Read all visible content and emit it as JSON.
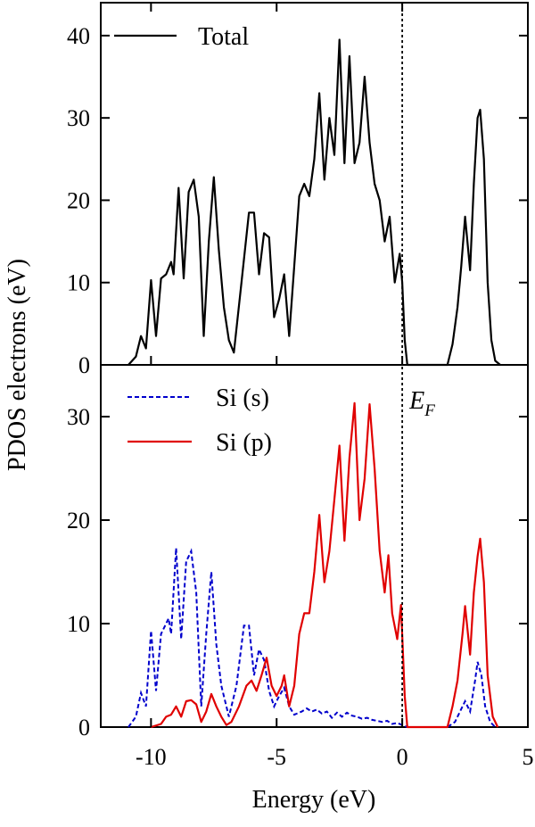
{
  "chart_data": {
    "type": "line",
    "xlabel": "Energy (eV)",
    "ylabel": "PDOS electrons (eV)",
    "xlim": [
      -12,
      5
    ],
    "x_ticks": [
      "-10",
      "-5",
      "0",
      "5"
    ],
    "x_tick_values": [
      -10,
      -5,
      0,
      5
    ],
    "fermi_level": {
      "x": 0,
      "label_main": "E",
      "label_sub": "F",
      "style": "dotted"
    },
    "panels": [
      {
        "id": "top",
        "ylim": [
          0,
          44
        ],
        "y_ticks": [
          "0",
          "10",
          "20",
          "30",
          "40"
        ],
        "y_tick_values": [
          0,
          10,
          20,
          30,
          40
        ],
        "legend_position": "top-left",
        "series": [
          {
            "name": "Total",
            "color": "#000000",
            "dash": "solid",
            "points": [
              [
                -10.9,
                0
              ],
              [
                -10.6,
                1
              ],
              [
                -10.4,
                3.5
              ],
              [
                -10.2,
                2
              ],
              [
                -10.0,
                10.3
              ],
              [
                -9.8,
                3.5
              ],
              [
                -9.6,
                10.5
              ],
              [
                -9.4,
                11
              ],
              [
                -9.2,
                12.5
              ],
              [
                -9.1,
                11
              ],
              [
                -8.9,
                21.5
              ],
              [
                -8.7,
                10.5
              ],
              [
                -8.5,
                21
              ],
              [
                -8.3,
                22.5
              ],
              [
                -8.1,
                18
              ],
              [
                -7.9,
                3.5
              ],
              [
                -7.7,
                15
              ],
              [
                -7.5,
                22.8
              ],
              [
                -7.3,
                14
              ],
              [
                -7.1,
                7
              ],
              [
                -6.9,
                3
              ],
              [
                -6.7,
                1.5
              ],
              [
                -6.4,
                10
              ],
              [
                -6.1,
                18.5
              ],
              [
                -5.9,
                18.5
              ],
              [
                -5.7,
                11
              ],
              [
                -5.5,
                16
              ],
              [
                -5.3,
                15.5
              ],
              [
                -5.1,
                5.8
              ],
              [
                -4.9,
                8
              ],
              [
                -4.7,
                11
              ],
              [
                -4.5,
                3.5
              ],
              [
                -4.3,
                12
              ],
              [
                -4.1,
                20.5
              ],
              [
                -3.9,
                22
              ],
              [
                -3.7,
                20.5
              ],
              [
                -3.5,
                25
              ],
              [
                -3.3,
                33
              ],
              [
                -3.1,
                22.5
              ],
              [
                -2.9,
                30
              ],
              [
                -2.7,
                25.5
              ],
              [
                -2.5,
                39.5
              ],
              [
                -2.3,
                24.5
              ],
              [
                -2.1,
                37.5
              ],
              [
                -1.9,
                24.5
              ],
              [
                -1.7,
                27
              ],
              [
                -1.5,
                35
              ],
              [
                -1.3,
                27
              ],
              [
                -1.1,
                22
              ],
              [
                -0.9,
                20
              ],
              [
                -0.7,
                15
              ],
              [
                -0.5,
                18
              ],
              [
                -0.3,
                10
              ],
              [
                -0.1,
                13.5
              ],
              [
                0.0,
                10
              ],
              [
                0.1,
                3
              ],
              [
                0.2,
                0
              ],
              [
                1.8,
                0
              ],
              [
                2.0,
                2.5
              ],
              [
                2.2,
                7
              ],
              [
                2.35,
                12
              ],
              [
                2.5,
                18
              ],
              [
                2.7,
                11.5
              ],
              [
                2.85,
                22
              ],
              [
                3.0,
                30
              ],
              [
                3.1,
                31
              ],
              [
                3.25,
                25
              ],
              [
                3.4,
                10
              ],
              [
                3.55,
                3
              ],
              [
                3.7,
                0.5
              ],
              [
                3.9,
                0
              ]
            ]
          }
        ]
      },
      {
        "id": "bottom",
        "ylim": [
          0,
          35
        ],
        "y_ticks": [
          "0",
          "10",
          "20",
          "30"
        ],
        "y_tick_values": [
          0,
          10,
          20,
          30
        ],
        "legend_position": "top-left",
        "series": [
          {
            "name": "Si (s)",
            "color": "#0000cc",
            "dash": "dashed",
            "points": [
              [
                -10.9,
                0
              ],
              [
                -10.6,
                1
              ],
              [
                -10.4,
                3.3
              ],
              [
                -10.2,
                2
              ],
              [
                -10.0,
                9.3
              ],
              [
                -9.8,
                3.5
              ],
              [
                -9.6,
                9
              ],
              [
                -9.4,
                10
              ],
              [
                -9.3,
                10.5
              ],
              [
                -9.2,
                9
              ],
              [
                -9.0,
                17.3
              ],
              [
                -8.8,
                8.5
              ],
              [
                -8.6,
                16
              ],
              [
                -8.4,
                17
              ],
              [
                -8.2,
                13
              ],
              [
                -8.0,
                2
              ],
              [
                -7.8,
                9
              ],
              [
                -7.6,
                15
              ],
              [
                -7.4,
                8
              ],
              [
                -7.2,
                4
              ],
              [
                -7.0,
                2
              ],
              [
                -6.9,
                1
              ],
              [
                -6.6,
                4
              ],
              [
                -6.3,
                9.8
              ],
              [
                -6.1,
                9.8
              ],
              [
                -5.9,
                5
              ],
              [
                -5.7,
                7.5
              ],
              [
                -5.5,
                6.5
              ],
              [
                -5.3,
                3.5
              ],
              [
                -5.1,
                2
              ],
              [
                -4.9,
                3
              ],
              [
                -4.7,
                3.8
              ],
              [
                -4.5,
                2
              ],
              [
                -4.3,
                1.2
              ],
              [
                -4.0,
                1.5
              ],
              [
                -3.8,
                1.8
              ],
              [
                -3.6,
                1.5
              ],
              [
                -3.4,
                1.7
              ],
              [
                -3.2,
                1.3
              ],
              [
                -3.0,
                1.5
              ],
              [
                -2.8,
                0.9
              ],
              [
                -2.6,
                1.4
              ],
              [
                -2.4,
                1
              ],
              [
                -2.2,
                1.4
              ],
              [
                -2.0,
                1.1
              ],
              [
                -1.8,
                1
              ],
              [
                -1.6,
                0.8
              ],
              [
                -1.4,
                0.9
              ],
              [
                -1.2,
                0.7
              ],
              [
                -1.0,
                0.6
              ],
              [
                -0.8,
                0.5
              ],
              [
                -0.6,
                0.6
              ],
              [
                -0.4,
                0.3
              ],
              [
                -0.2,
                0.4
              ],
              [
                0.0,
                0.2
              ],
              [
                0.2,
                0
              ],
              [
                1.8,
                0
              ],
              [
                2.1,
                0.5
              ],
              [
                2.3,
                1.5
              ],
              [
                2.5,
                2.5
              ],
              [
                2.7,
                1.5
              ],
              [
                2.9,
                4.5
              ],
              [
                3.0,
                6.3
              ],
              [
                3.15,
                5
              ],
              [
                3.3,
                2
              ],
              [
                3.5,
                0.5
              ],
              [
                3.7,
                0
              ]
            ]
          },
          {
            "name": "Si (p)",
            "color": "#e00000",
            "dash": "solid",
            "points": [
              [
                -10.0,
                0
              ],
              [
                -9.6,
                0.3
              ],
              [
                -9.4,
                1
              ],
              [
                -9.2,
                1.2
              ],
              [
                -9.0,
                2
              ],
              [
                -8.8,
                1
              ],
              [
                -8.6,
                2.5
              ],
              [
                -8.4,
                2.6
              ],
              [
                -8.2,
                2.2
              ],
              [
                -8.0,
                0.5
              ],
              [
                -7.8,
                1.5
              ],
              [
                -7.6,
                3.2
              ],
              [
                -7.4,
                2
              ],
              [
                -7.2,
                1
              ],
              [
                -7.0,
                0.2
              ],
              [
                -6.8,
                0.5
              ],
              [
                -6.5,
                2
              ],
              [
                -6.2,
                4
              ],
              [
                -6.0,
                4.5
              ],
              [
                -5.8,
                3.5
              ],
              [
                -5.6,
                5
              ],
              [
                -5.4,
                6.7
              ],
              [
                -5.2,
                4
              ],
              [
                -5.0,
                3
              ],
              [
                -4.8,
                4
              ],
              [
                -4.7,
                5
              ],
              [
                -4.5,
                2
              ],
              [
                -4.3,
                4
              ],
              [
                -4.1,
                9
              ],
              [
                -3.9,
                11
              ],
              [
                -3.7,
                11
              ],
              [
                -3.5,
                15
              ],
              [
                -3.3,
                20.5
              ],
              [
                -3.1,
                14
              ],
              [
                -2.9,
                17
              ],
              [
                -2.7,
                22
              ],
              [
                -2.5,
                27.2
              ],
              [
                -2.3,
                18
              ],
              [
                -2.1,
                26
              ],
              [
                -1.9,
                31.3
              ],
              [
                -1.7,
                20
              ],
              [
                -1.5,
                24
              ],
              [
                -1.3,
                31.2
              ],
              [
                -1.1,
                25
              ],
              [
                -0.9,
                17
              ],
              [
                -0.7,
                13
              ],
              [
                -0.55,
                16.6
              ],
              [
                -0.4,
                11
              ],
              [
                -0.2,
                8.5
              ],
              [
                -0.05,
                11.8
              ],
              [
                0.1,
                3
              ],
              [
                0.2,
                0
              ],
              [
                1.8,
                0
              ],
              [
                2.0,
                2
              ],
              [
                2.2,
                4.5
              ],
              [
                2.4,
                9
              ],
              [
                2.5,
                11.7
              ],
              [
                2.7,
                7
              ],
              [
                2.85,
                13
              ],
              [
                3.0,
                16.5
              ],
              [
                3.1,
                18.2
              ],
              [
                3.25,
                14
              ],
              [
                3.4,
                5
              ],
              [
                3.6,
                1
              ],
              [
                3.8,
                0
              ]
            ]
          }
        ]
      }
    ]
  }
}
